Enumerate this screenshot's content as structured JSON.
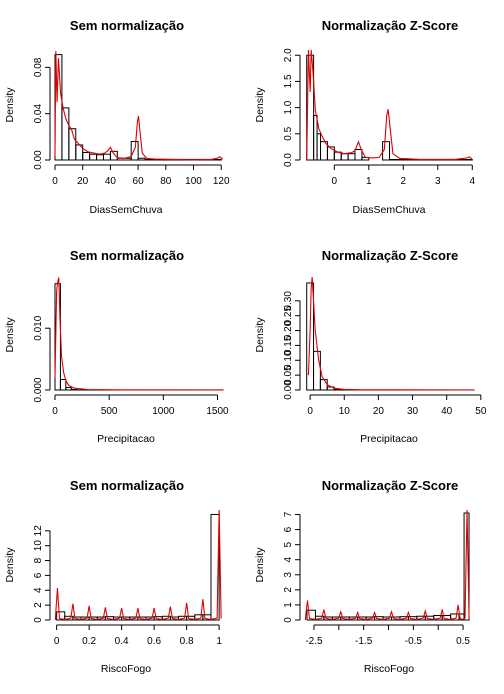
{
  "chart_data": [
    {
      "type": "histogram",
      "title": "Sem normalização",
      "xlabel": "DiasSemChuva",
      "ylabel": "Density",
      "xlim": [
        0,
        122
      ],
      "ylim": [
        0,
        0.095
      ],
      "xticks": [
        0,
        20,
        40,
        60,
        80,
        100,
        120
      ],
      "yticks": [
        0.0,
        0.04,
        0.08
      ],
      "ytick_labels": [
        "0.00",
        "0.04",
        "0.08"
      ],
      "bins": [
        [
          0,
          5,
          0.091
        ],
        [
          5,
          10,
          0.045
        ],
        [
          10,
          15,
          0.027
        ],
        [
          15,
          20,
          0.013
        ],
        [
          20,
          25,
          0.0065
        ],
        [
          25,
          30,
          0.005
        ],
        [
          30,
          35,
          0.0045
        ],
        [
          35,
          40,
          0.005
        ],
        [
          40,
          45,
          0.0075
        ],
        [
          45,
          55,
          0.0015
        ],
        [
          55,
          60,
          0.016
        ],
        [
          60,
          65,
          0.0015
        ],
        [
          65,
          120,
          0.0005
        ]
      ],
      "density_line": [
        [
          0,
          0.003
        ],
        [
          0.6,
          0.094
        ],
        [
          1.5,
          0.05
        ],
        [
          2.5,
          0.088
        ],
        [
          4,
          0.058
        ],
        [
          6,
          0.044
        ],
        [
          8,
          0.035
        ],
        [
          10,
          0.03
        ],
        [
          12,
          0.026
        ],
        [
          14,
          0.018
        ],
        [
          17,
          0.014
        ],
        [
          20,
          0.01
        ],
        [
          24,
          0.007
        ],
        [
          28,
          0.006
        ],
        [
          32,
          0.005
        ],
        [
          36,
          0.006
        ],
        [
          38,
          0.008
        ],
        [
          40,
          0.011
        ],
        [
          42,
          0.006
        ],
        [
          45,
          0.002
        ],
        [
          50,
          0.0015
        ],
        [
          55,
          0.003
        ],
        [
          58,
          0.011
        ],
        [
          59.5,
          0.033
        ],
        [
          60.3,
          0.038
        ],
        [
          61.3,
          0.025
        ],
        [
          63,
          0.006
        ],
        [
          66,
          0.0015
        ],
        [
          72,
          0.0008
        ],
        [
          85,
          0.0005
        ],
        [
          100,
          0.0003
        ],
        [
          113,
          0.0005
        ],
        [
          117,
          0.0015
        ],
        [
          119,
          0.0028
        ],
        [
          121,
          0.0008
        ]
      ]
    },
    {
      "type": "histogram",
      "title": "Normalização Z-Score",
      "xlabel": "DiasSemChuva",
      "ylabel": "Density",
      "xlim": [
        -0.85,
        4.05
      ],
      "ylim": [
        0,
        2.1
      ],
      "xticks": [
        0,
        1,
        2,
        3,
        4
      ],
      "yticks": [
        0.0,
        0.5,
        1.0,
        1.5,
        2.0
      ],
      "ytick_labels": [
        "0.0",
        "0.5",
        "1.0",
        "1.5",
        "2.0"
      ],
      "bins": [
        [
          -0.8,
          -0.6,
          2.0
        ],
        [
          -0.6,
          -0.5,
          0.85
        ],
        [
          -0.5,
          -0.4,
          0.5
        ],
        [
          -0.4,
          -0.2,
          0.35
        ],
        [
          -0.2,
          0.0,
          0.25
        ],
        [
          0.0,
          0.2,
          0.15
        ],
        [
          0.2,
          0.4,
          0.12
        ],
        [
          0.4,
          0.6,
          0.12
        ],
        [
          0.6,
          0.8,
          0.2
        ],
        [
          0.8,
          1.0,
          0.05
        ],
        [
          1.4,
          1.6,
          0.35
        ],
        [
          1.6,
          4.0,
          0.01
        ]
      ],
      "density_line": [
        [
          -0.8,
          0.0
        ],
        [
          -0.75,
          2.1
        ],
        [
          -0.7,
          1.3
        ],
        [
          -0.67,
          2.1
        ],
        [
          -0.62,
          1.7
        ],
        [
          -0.55,
          0.95
        ],
        [
          -0.45,
          0.6
        ],
        [
          -0.35,
          0.45
        ],
        [
          -0.25,
          0.32
        ],
        [
          -0.1,
          0.22
        ],
        [
          0.1,
          0.15
        ],
        [
          0.3,
          0.12
        ],
        [
          0.5,
          0.14
        ],
        [
          0.6,
          0.18
        ],
        [
          0.7,
          0.35
        ],
        [
          0.78,
          0.2
        ],
        [
          0.9,
          0.05
        ],
        [
          1.1,
          0.04
        ],
        [
          1.3,
          0.05
        ],
        [
          1.45,
          0.2
        ],
        [
          1.52,
          0.85
        ],
        [
          1.56,
          0.97
        ],
        [
          1.62,
          0.6
        ],
        [
          1.7,
          0.12
        ],
        [
          1.9,
          0.03
        ],
        [
          2.5,
          0.01
        ],
        [
          3.5,
          0.01
        ],
        [
          3.85,
          0.04
        ],
        [
          3.92,
          0.06
        ],
        [
          4.0,
          0.01
        ]
      ]
    },
    {
      "type": "histogram",
      "title": "Sem normalização",
      "xlabel": "Precipitacao",
      "ylabel": "Density",
      "xlim": [
        0,
        1560
      ],
      "ylim": [
        0,
        0.0178
      ],
      "xticks": [
        0,
        500,
        1000,
        1500
      ],
      "yticks": [
        0.0,
        0.01
      ],
      "ytick_labels": [
        "0.000",
        "0.010"
      ],
      "bins": [
        [
          0,
          50,
          0.0172
        ],
        [
          50,
          100,
          0.0017
        ],
        [
          100,
          150,
          0.0004
        ],
        [
          150,
          200,
          0.0001
        ],
        [
          200,
          1550,
          2e-05
        ]
      ],
      "density_line": [
        [
          0,
          0.002
        ],
        [
          15,
          0.016
        ],
        [
          25,
          0.0175
        ],
        [
          35,
          0.0182
        ],
        [
          45,
          0.012
        ],
        [
          60,
          0.0055
        ],
        [
          80,
          0.0028
        ],
        [
          100,
          0.0015
        ],
        [
          130,
          0.0007
        ],
        [
          180,
          0.0003
        ],
        [
          300,
          8e-05
        ],
        [
          600,
          1e-05
        ],
        [
          1550,
          0.0
        ]
      ]
    },
    {
      "type": "histogram",
      "title": "Normalização Z-Score",
      "xlabel": "Precipitacao",
      "ylabel": "Density",
      "xlim": [
        -1.5,
        48
      ],
      "ylim": [
        0,
        0.37
      ],
      "xticks": [
        0,
        10,
        20,
        30,
        40,
        50
      ],
      "yticks": [
        0.0,
        0.05,
        0.1,
        0.15,
        0.2,
        0.25,
        0.3
      ],
      "ytick_labels": [
        "0.00",
        "0.05",
        "0.10",
        "0.15",
        "0.20",
        "0.25",
        "0.30"
      ],
      "bins": [
        [
          -1,
          1,
          0.36
        ],
        [
          1,
          3,
          0.13
        ],
        [
          3,
          5,
          0.035
        ],
        [
          5,
          7,
          0.01
        ],
        [
          7,
          9,
          0.003
        ],
        [
          9,
          48,
          0.0003
        ]
      ],
      "density_line": [
        [
          -0.5,
          0.05
        ],
        [
          0,
          0.2
        ],
        [
          0.3,
          0.34
        ],
        [
          0.6,
          0.38
        ],
        [
          1,
          0.3
        ],
        [
          1.5,
          0.2
        ],
        [
          2.5,
          0.1
        ],
        [
          3.5,
          0.045
        ],
        [
          5,
          0.018
        ],
        [
          7,
          0.006
        ],
        [
          10,
          0.002
        ],
        [
          15,
          0.0006
        ],
        [
          48,
          0.0
        ]
      ]
    },
    {
      "type": "histogram",
      "title": "Sem normalização",
      "xlabel": "RiscoFogo",
      "ylabel": "Density",
      "xlim": [
        -0.01,
        1.03
      ],
      "ylim": [
        0,
        14.8
      ],
      "xticks": [
        0.0,
        0.2,
        0.4,
        0.6,
        0.8,
        1.0
      ],
      "yticks": [
        0,
        2,
        4,
        6,
        8,
        10,
        12
      ],
      "ytick_labels": [
        "0",
        "2",
        "4",
        "6",
        "8",
        "10",
        "12"
      ],
      "bins": [
        [
          0.0,
          0.05,
          1.1
        ],
        [
          0.05,
          0.1,
          0.5
        ],
        [
          0.1,
          0.15,
          0.4
        ],
        [
          0.15,
          0.2,
          0.4
        ],
        [
          0.2,
          0.25,
          0.4
        ],
        [
          0.25,
          0.3,
          0.4
        ],
        [
          0.3,
          0.35,
          0.45
        ],
        [
          0.35,
          0.4,
          0.4
        ],
        [
          0.4,
          0.45,
          0.4
        ],
        [
          0.45,
          0.5,
          0.4
        ],
        [
          0.5,
          0.55,
          0.4
        ],
        [
          0.55,
          0.6,
          0.4
        ],
        [
          0.6,
          0.65,
          0.45
        ],
        [
          0.65,
          0.7,
          0.5
        ],
        [
          0.7,
          0.75,
          0.4
        ],
        [
          0.75,
          0.8,
          0.5
        ],
        [
          0.8,
          0.85,
          0.5
        ],
        [
          0.85,
          0.9,
          0.7
        ],
        [
          0.9,
          0.95,
          0.7
        ],
        [
          0.95,
          1.0,
          14.2
        ]
      ],
      "peaks": [
        [
          0.005,
          4.3
        ],
        [
          0.1,
          2.2
        ],
        [
          0.2,
          1.9
        ],
        [
          0.3,
          1.7
        ],
        [
          0.4,
          1.6
        ],
        [
          0.5,
          1.6
        ],
        [
          0.6,
          1.6
        ],
        [
          0.7,
          1.8
        ],
        [
          0.8,
          2.3
        ],
        [
          0.9,
          2.8
        ],
        [
          1.0,
          14.8
        ]
      ]
    },
    {
      "type": "histogram",
      "title": "Normalização Z-Score",
      "xlabel": "RiscoFogo",
      "ylabel": "Density",
      "xlim": [
        -2.68,
        0.72
      ],
      "ylim": [
        0,
        7.3
      ],
      "xticks": [
        -2.5,
        -2.0,
        -1.5,
        -1.0,
        -0.5,
        0.0,
        0.5
      ],
      "yticks": [
        0,
        1,
        2,
        3,
        4,
        5,
        6,
        7
      ],
      "ytick_labels": [
        "0",
        "1",
        "2",
        "3",
        "4",
        "5",
        "6",
        "7"
      ],
      "xtick_labels": [
        "-2.5",
        "",
        "-1.5",
        "",
        "-0.5",
        "",
        "0.5"
      ],
      "bins": [
        [
          -2.64,
          -2.47,
          0.65
        ],
        [
          -2.47,
          -2.3,
          0.25
        ],
        [
          -2.3,
          -2.13,
          0.2
        ],
        [
          -2.13,
          -1.96,
          0.2
        ],
        [
          -1.96,
          -1.79,
          0.2
        ],
        [
          -1.79,
          -1.62,
          0.2
        ],
        [
          -1.62,
          -1.45,
          0.2
        ],
        [
          -1.45,
          -1.28,
          0.2
        ],
        [
          -1.28,
          -1.11,
          0.22
        ],
        [
          -1.11,
          -0.94,
          0.2
        ],
        [
          -0.94,
          -0.77,
          0.2
        ],
        [
          -0.77,
          -0.6,
          0.22
        ],
        [
          -0.6,
          -0.43,
          0.22
        ],
        [
          -0.43,
          -0.26,
          0.25
        ],
        [
          -0.26,
          -0.09,
          0.25
        ],
        [
          -0.09,
          0.08,
          0.3
        ],
        [
          0.08,
          0.25,
          0.3
        ],
        [
          0.25,
          0.42,
          0.4
        ],
        [
          0.42,
          0.52,
          0.4
        ],
        [
          0.52,
          0.62,
          7.1
        ]
      ],
      "peaks": [
        [
          -2.63,
          1.3
        ],
        [
          -2.3,
          0.7
        ],
        [
          -1.96,
          0.55
        ],
        [
          -1.62,
          0.5
        ],
        [
          -1.28,
          0.5
        ],
        [
          -0.94,
          0.55
        ],
        [
          -0.6,
          0.5
        ],
        [
          -0.26,
          0.6
        ],
        [
          0.08,
          0.7
        ],
        [
          0.4,
          1.0
        ],
        [
          0.58,
          7.3
        ]
      ]
    }
  ]
}
